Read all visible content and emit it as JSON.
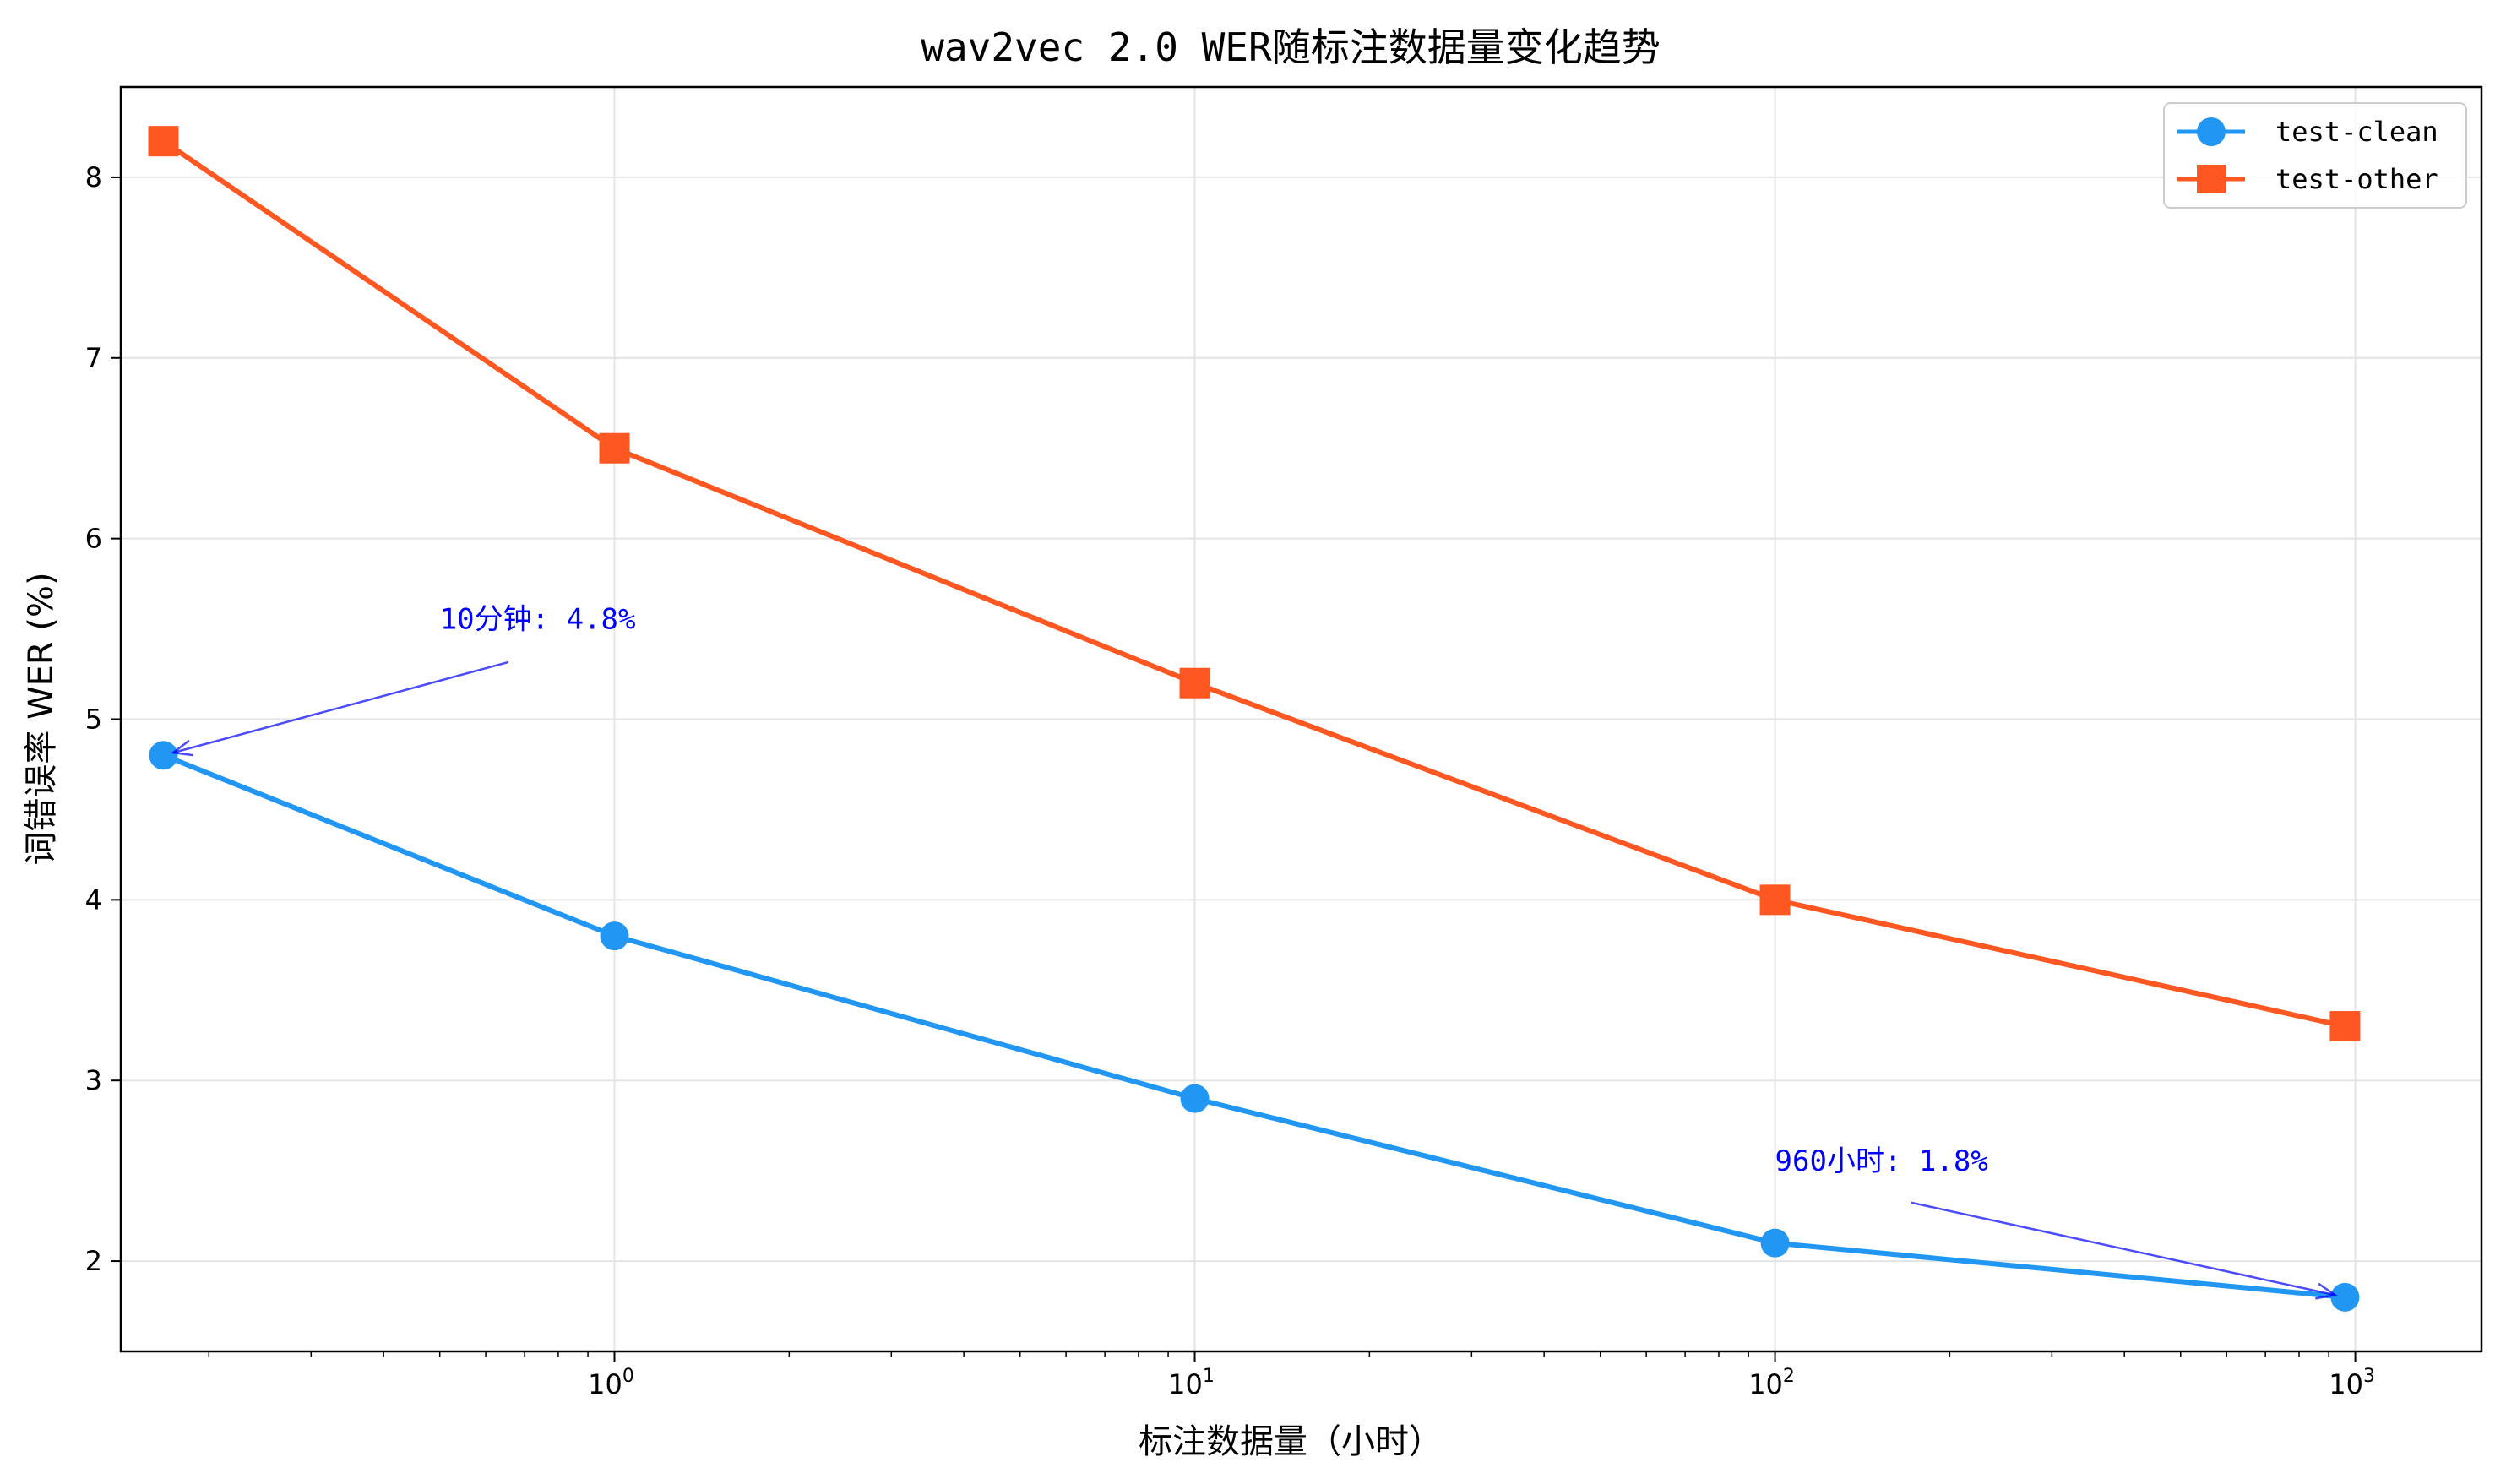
{
  "chart_data": {
    "type": "line",
    "title": "wav2vec 2.0 WER随标注数据量变化趋势",
    "xlabel": "标注数据量（小时）",
    "ylabel": "词错误率 WER (%)",
    "xscale": "log",
    "x": [
      0.167,
      1,
      10,
      100,
      960
    ],
    "xlim": [
      0.141,
      1650
    ],
    "ylim": [
      1.5,
      8.5
    ],
    "xticks": [
      {
        "value": 1,
        "base": "10",
        "exp": "0"
      },
      {
        "value": 10,
        "base": "10",
        "exp": "1"
      },
      {
        "value": 100,
        "base": "10",
        "exp": "2"
      },
      {
        "value": 1000,
        "base": "10",
        "exp": "3"
      }
    ],
    "yticks": [
      2,
      3,
      4,
      5,
      6,
      7,
      8
    ],
    "grid": true,
    "legend_position": "top-right",
    "series": [
      {
        "name": "test-clean",
        "color": "#2196F3",
        "marker": "circle",
        "values": [
          4.8,
          3.8,
          2.9,
          2.1,
          1.8
        ]
      },
      {
        "name": "test-other",
        "color": "#FF5722",
        "marker": "square",
        "values": [
          8.2,
          6.5,
          5.2,
          4.0,
          3.3
        ]
      }
    ],
    "annotations": [
      {
        "text": "10分钟: 4.8%",
        "text_x": 0.5,
        "text_y": 5.5,
        "point_x": 0.167,
        "point_y": 4.8,
        "color": "#0000FF"
      },
      {
        "text": "960小时: 1.8%",
        "text_x": 100,
        "text_y": 2.5,
        "point_x": 960,
        "point_y": 1.8,
        "color": "#0000FF"
      }
    ]
  }
}
